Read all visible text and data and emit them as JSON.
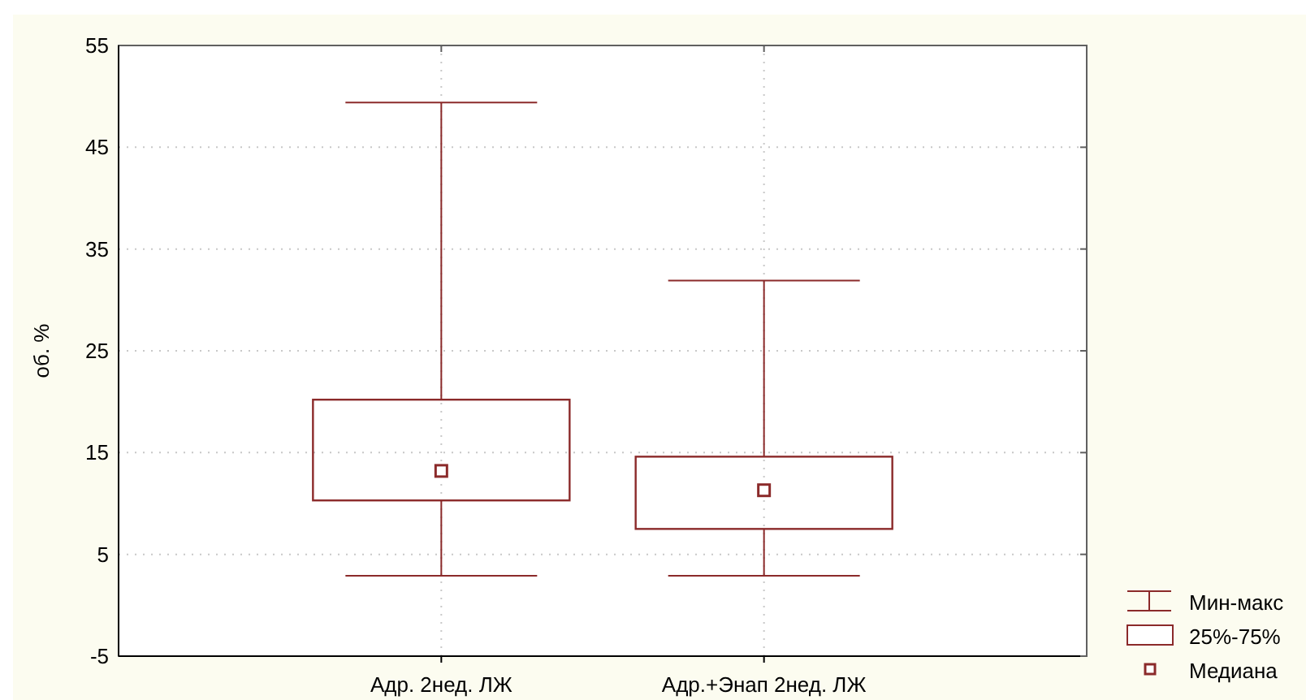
{
  "chart_data": {
    "type": "box",
    "ylabel": "об. %",
    "categories": [
      "Адр. 2нед. ЛЖ",
      "Адр.+Энап 2нед. ЛЖ"
    ],
    "boxes": [
      {
        "low": 2.9,
        "q1": 10.3,
        "median": 13.2,
        "q3": 20.2,
        "high": 49.4
      },
      {
        "low": 2.9,
        "q1": 7.5,
        "median": 11.3,
        "q3": 14.6,
        "high": 31.9
      }
    ],
    "color": "#8b2a2a",
    "ylim": [
      -5,
      55
    ],
    "yticks": [
      -5,
      5,
      15,
      25,
      35,
      45,
      55
    ],
    "grid": true,
    "annotations": [
      "Мин-макс",
      "25%-75%",
      "Медиана"
    ]
  }
}
